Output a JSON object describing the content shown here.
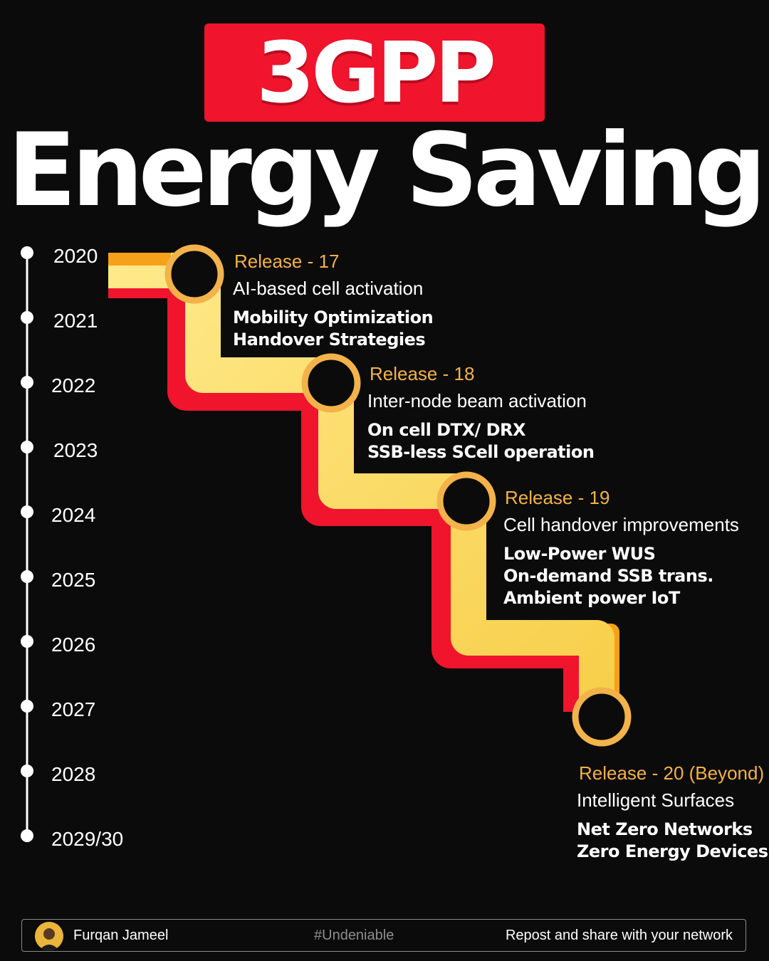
{
  "header": {
    "badge": "3GPP",
    "title": "Energy Saving"
  },
  "timeline": {
    "years": [
      "2020",
      "2021",
      "2022",
      "2023",
      "2024",
      "2025",
      "2026",
      "2027",
      "2028",
      "2029/30"
    ]
  },
  "releases": [
    {
      "label": "Release - 17",
      "subtitle": "AI-based cell activation",
      "features": [
        "Mobility Optimization",
        "Handover Strategies"
      ]
    },
    {
      "label": "Release - 18",
      "subtitle": "Inter-node beam activation",
      "features": [
        "On cell DTX/ DRX",
        "SSB-less SCell operation"
      ]
    },
    {
      "label": "Release - 19",
      "subtitle": "Cell handover improvements",
      "features": [
        "Low-Power WUS",
        "On-demand SSB trans.",
        "Ambient power IoT"
      ]
    },
    {
      "label": "Release - 20 (Beyond)",
      "subtitle": "Intelligent Surfaces",
      "features": [
        "Net Zero Networks",
        "Zero Energy Devices"
      ]
    }
  ],
  "colors": {
    "accent_red": "#f0142d",
    "path_yellow": "#fbdb5c",
    "path_orange": "#f7a11a",
    "node_ring": "#f3b24a",
    "release_text": "#f3b24a"
  },
  "footer": {
    "author": "Furqan Jameel",
    "hashtag": "#Undeniable",
    "cta": "Repost and share with your network"
  }
}
